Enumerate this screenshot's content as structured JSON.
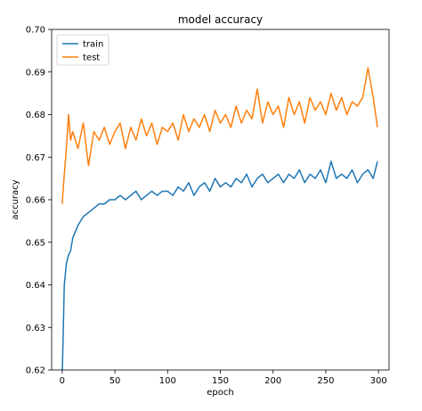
{
  "chart_data": {
    "type": "line",
    "title": "model accuracy",
    "xlabel": "epoch",
    "ylabel": "accuracy",
    "xlim": [
      -10,
      310
    ],
    "ylim": [
      0.62,
      0.7
    ],
    "xticks": [
      0,
      50,
      100,
      150,
      200,
      250,
      300
    ],
    "xtick_labels": [
      "0",
      "50",
      "100",
      "150",
      "200",
      "250",
      "300"
    ],
    "yticks": [
      0.62,
      0.63,
      0.64,
      0.65,
      0.66,
      0.67,
      0.68,
      0.69,
      0.7
    ],
    "ytick_labels": [
      "0.62",
      "0.63",
      "0.64",
      "0.65",
      "0.66",
      "0.67",
      "0.68",
      "0.69",
      "0.70"
    ],
    "grid": false,
    "legend_position": "top-left",
    "series": [
      {
        "name": "train",
        "color": "#1f77b4",
        "x": [
          0,
          2,
          4,
          6,
          8,
          10,
          15,
          20,
          25,
          30,
          35,
          40,
          45,
          50,
          55,
          60,
          65,
          70,
          75,
          80,
          85,
          90,
          95,
          100,
          105,
          110,
          115,
          120,
          125,
          130,
          135,
          140,
          145,
          150,
          155,
          160,
          165,
          170,
          175,
          180,
          185,
          190,
          195,
          200,
          205,
          210,
          215,
          220,
          225,
          230,
          235,
          240,
          245,
          250,
          255,
          260,
          265,
          270,
          275,
          280,
          285,
          290,
          295,
          299
        ],
        "values": [
          0.618,
          0.64,
          0.645,
          0.647,
          0.648,
          0.651,
          0.654,
          0.656,
          0.657,
          0.658,
          0.659,
          0.659,
          0.66,
          0.66,
          0.661,
          0.66,
          0.661,
          0.662,
          0.66,
          0.661,
          0.662,
          0.661,
          0.662,
          0.662,
          0.661,
          0.663,
          0.662,
          0.664,
          0.661,
          0.663,
          0.664,
          0.662,
          0.665,
          0.663,
          0.664,
          0.663,
          0.665,
          0.664,
          0.666,
          0.663,
          0.665,
          0.666,
          0.664,
          0.665,
          0.666,
          0.664,
          0.666,
          0.665,
          0.667,
          0.664,
          0.666,
          0.665,
          0.667,
          0.664,
          0.669,
          0.665,
          0.666,
          0.665,
          0.667,
          0.664,
          0.666,
          0.667,
          0.665,
          0.669
        ]
      },
      {
        "name": "test",
        "color": "#ff7f0e",
        "x": [
          0,
          2,
          4,
          6,
          8,
          10,
          15,
          20,
          25,
          30,
          35,
          40,
          45,
          50,
          55,
          60,
          65,
          70,
          75,
          80,
          85,
          90,
          95,
          100,
          105,
          110,
          115,
          120,
          125,
          130,
          135,
          140,
          145,
          150,
          155,
          160,
          165,
          170,
          175,
          180,
          185,
          190,
          195,
          200,
          205,
          210,
          215,
          220,
          225,
          230,
          235,
          240,
          245,
          250,
          255,
          260,
          265,
          270,
          275,
          280,
          285,
          290,
          295,
          299
        ],
        "values": [
          0.659,
          0.666,
          0.672,
          0.68,
          0.674,
          0.676,
          0.672,
          0.678,
          0.668,
          0.676,
          0.674,
          0.677,
          0.673,
          0.676,
          0.678,
          0.672,
          0.677,
          0.674,
          0.679,
          0.675,
          0.678,
          0.673,
          0.677,
          0.676,
          0.678,
          0.674,
          0.68,
          0.676,
          0.679,
          0.677,
          0.68,
          0.676,
          0.681,
          0.678,
          0.68,
          0.677,
          0.682,
          0.678,
          0.681,
          0.679,
          0.686,
          0.678,
          0.683,
          0.68,
          0.682,
          0.677,
          0.684,
          0.68,
          0.683,
          0.678,
          0.684,
          0.681,
          0.683,
          0.68,
          0.685,
          0.681,
          0.684,
          0.68,
          0.683,
          0.682,
          0.684,
          0.691,
          0.684,
          0.677
        ]
      }
    ]
  }
}
